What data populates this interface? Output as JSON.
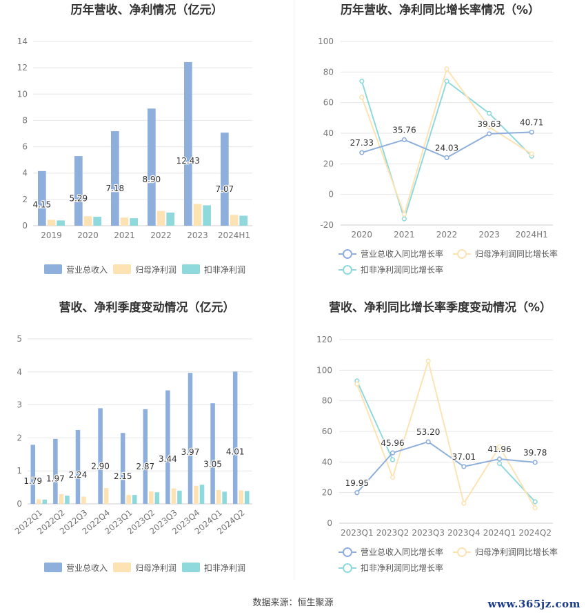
{
  "colors": {
    "revenue": "#8eaedc",
    "net_profit": "#fde3b3",
    "deducted_profit": "#8fd9dd",
    "revenue_line": "#8eaedc",
    "net_line": "#fde3b3",
    "deducted_line": "#8fd9dd",
    "grid": "#e6e6e6",
    "axis_text": "#777777",
    "title": "#333333"
  },
  "chart_data": [
    {
      "id": "annual-amount",
      "type": "bar",
      "title": "历年营收、净利情况（亿元）",
      "categories": [
        "2019",
        "2020",
        "2021",
        "2022",
        "2023",
        "2024H1"
      ],
      "yticks": [
        0,
        2,
        4,
        6,
        8,
        10,
        12,
        14
      ],
      "ylim": [
        0,
        14
      ],
      "series": [
        {
          "name": "营业总收入",
          "values": [
            4.15,
            5.29,
            7.18,
            8.9,
            12.43,
            7.07
          ],
          "labels": [
            "4.15",
            "5.29",
            "7.18",
            "8.90",
            "12.43",
            "7.07"
          ]
        },
        {
          "name": "归母净利润",
          "values": [
            0.45,
            0.72,
            0.62,
            1.12,
            1.65,
            0.82
          ]
        },
        {
          "name": "扣非净利润",
          "values": [
            0.4,
            0.68,
            0.57,
            1.0,
            1.55,
            0.76
          ]
        }
      ],
      "legend_position": "bottom"
    },
    {
      "id": "annual-growth",
      "type": "line",
      "title": "历年营收、净利同比增长率情况（%）",
      "categories": [
        "2020",
        "2021",
        "2022",
        "2023",
        "2024H1"
      ],
      "yticks": [
        -20,
        0,
        20,
        40,
        60,
        80,
        100
      ],
      "ylim": [
        -20,
        100
      ],
      "series": [
        {
          "name": "营业总收入同比增长率",
          "values": [
            27.33,
            35.76,
            24.03,
            39.63,
            40.71
          ],
          "labels": [
            "27.33",
            "35.76",
            "24.03",
            "39.63",
            "40.71"
          ]
        },
        {
          "name": "归母净利润同比增长率",
          "values": [
            63.5,
            -13.0,
            82.0,
            44.0,
            26.5
          ]
        },
        {
          "name": "扣非净利润同比增长率",
          "values": [
            74.0,
            -16.0,
            74.0,
            53.0,
            25.0
          ]
        }
      ],
      "legend_position": "bottom"
    },
    {
      "id": "quarterly-amount",
      "type": "bar",
      "title": "营收、净利季度变动情况（亿元）",
      "categories": [
        "2022Q1",
        "2022Q2",
        "2022Q3",
        "2022Q4",
        "2023Q1",
        "2023Q2",
        "2023Q3",
        "2023Q4",
        "2024Q1",
        "2024Q2"
      ],
      "yticks": [
        0,
        1,
        2,
        3,
        4,
        5
      ],
      "ylim": [
        0,
        5
      ],
      "series": [
        {
          "name": "营业总收入",
          "values": [
            1.79,
            1.97,
            2.24,
            2.9,
            2.15,
            2.87,
            3.44,
            3.97,
            3.05,
            4.01
          ],
          "labels": [
            "1.79",
            "1.97",
            "2.24",
            "2.90",
            "2.15",
            "2.87",
            "3.44",
            "3.97",
            "3.05",
            "4.01"
          ]
        },
        {
          "name": "归母净利润",
          "values": [
            0.14,
            0.29,
            0.22,
            0.48,
            0.27,
            0.38,
            0.47,
            0.55,
            0.42,
            0.41
          ]
        },
        {
          "name": "扣非净利润",
          "values": [
            0.13,
            0.25,
            0.0,
            0.0,
            0.27,
            0.35,
            0.4,
            0.58,
            0.37,
            0.39
          ]
        }
      ],
      "legend_position": "bottom"
    },
    {
      "id": "quarterly-growth",
      "type": "line",
      "title": "营收、净利同比增长率季度变动情况（%）",
      "categories": [
        "2023Q1",
        "2023Q2",
        "2023Q3",
        "2023Q4",
        "2024Q1",
        "2024Q2"
      ],
      "yticks": [
        0,
        20,
        40,
        60,
        80,
        100,
        120
      ],
      "ylim": [
        0,
        120
      ],
      "series": [
        {
          "name": "营业总收入同比增长率",
          "values": [
            19.95,
            45.96,
            53.2,
            37.01,
            41.96,
            39.78
          ],
          "labels": [
            "19.95",
            "45.96",
            "53.20",
            "37.01",
            "41.96",
            "39.78"
          ]
        },
        {
          "name": "归母净利润同比增长率",
          "values": [
            91.0,
            30.0,
            106.0,
            13.0,
            50.0,
            10.0
          ]
        },
        {
          "name": "扣非净利润同比增长率",
          "values": [
            93.0,
            41.5,
            null,
            null,
            39.0,
            14.0
          ]
        }
      ],
      "legend_position": "bottom"
    }
  ],
  "footer": {
    "source": "数据来源：恒生聚源",
    "watermark": "www.365jz.com"
  }
}
